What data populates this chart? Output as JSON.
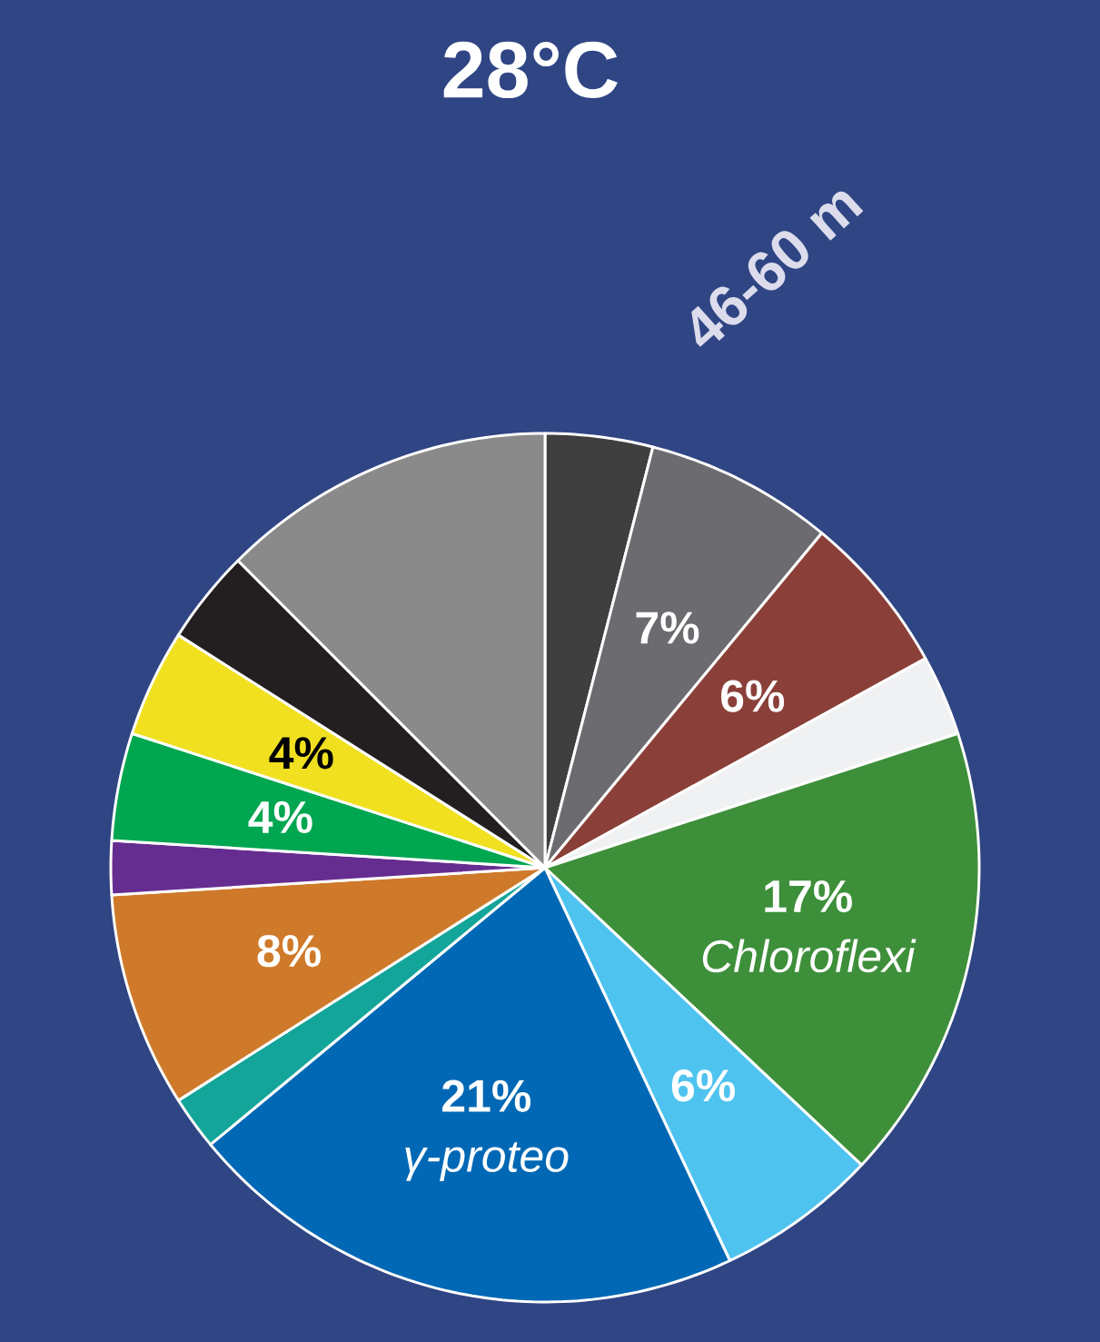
{
  "chart_data": {
    "type": "pie",
    "title": "28°C",
    "subtitle": "46-60 m",
    "categories": [
      null,
      null,
      null,
      null,
      "Chloroflexi",
      null,
      "γ-proteo",
      null,
      null,
      null,
      null,
      null,
      null,
      null
    ],
    "values": [
      4,
      7,
      6,
      3,
      17,
      6,
      21,
      2,
      8,
      2,
      4,
      4,
      3.5,
      12.5
    ],
    "value_labels": [
      null,
      "7%",
      "6%",
      null,
      "17%",
      "6%",
      "21%",
      null,
      "8%",
      null,
      "4%",
      "4%",
      null,
      null
    ],
    "colors": [
      "#3f3f3f",
      "#6b6b70",
      "#8a4038",
      "#f0f1f3",
      "#3e8f3a",
      "#4fc3ef",
      "#0068b5",
      "#14a59a",
      "#cf7a2a",
      "#662d91",
      "#00a650",
      "#f0e020",
      "#231f20",
      "#8a8a8a"
    ]
  }
}
